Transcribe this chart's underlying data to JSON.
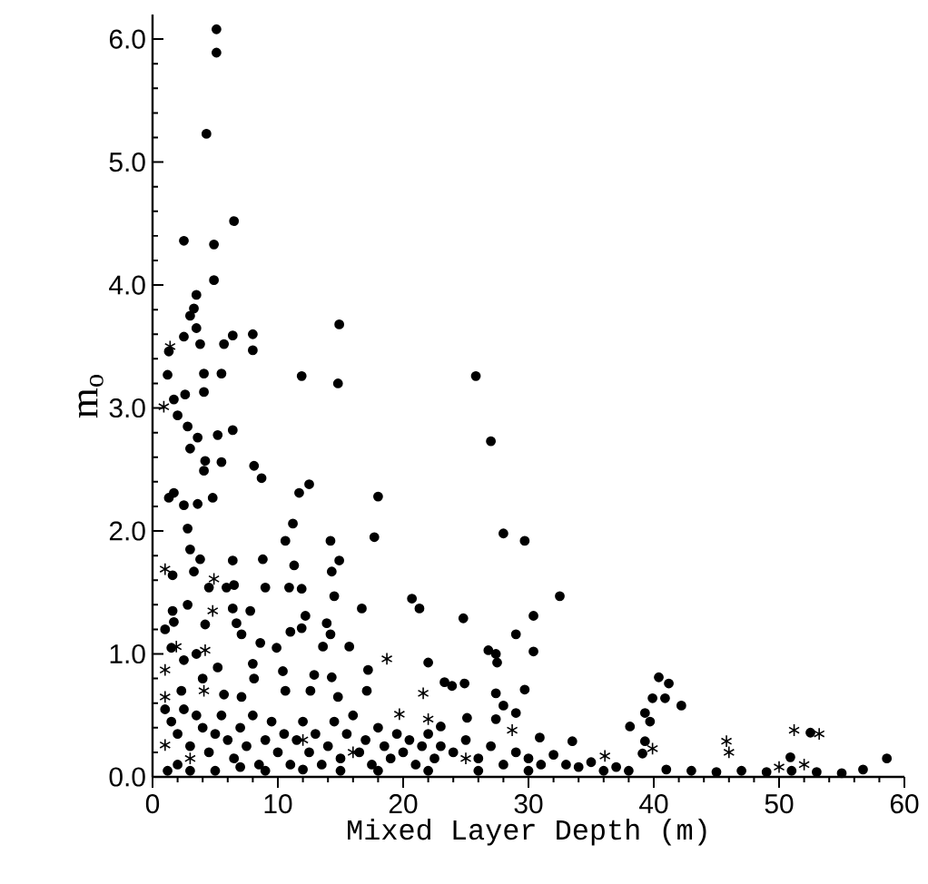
{
  "chart_data": {
    "type": "scatter",
    "xlabel": "Mixed Layer Depth (m)",
    "ylabel": "m$_{o}$",
    "xlim": [
      0,
      60
    ],
    "ylim": [
      0,
      6.2
    ],
    "xticks": [
      0,
      10,
      20,
      30,
      40,
      50,
      60
    ],
    "yticks": [
      {
        "value": 0,
        "label": "0.0"
      },
      {
        "value": 1,
        "label": "1.0"
      },
      {
        "value": 2,
        "label": "2.0"
      },
      {
        "value": 3,
        "label": "3.0"
      },
      {
        "value": 4,
        "label": "4.0"
      },
      {
        "value": 5,
        "label": "5.0"
      },
      {
        "value": 6,
        "label": "6.0"
      }
    ],
    "series": [
      {
        "color": "#000000",
        "marker": "circle",
        "x": [
          5.1,
          5.1,
          4.3,
          6.5,
          2.5,
          4.9,
          4.9,
          3.5,
          3.3,
          3.0,
          3.5,
          2.5,
          3.8,
          5.7,
          6.4,
          8.0,
          8.0,
          14.9,
          1.2,
          4.1,
          5.5,
          11.9,
          14.8,
          2.6,
          4.1,
          1.7,
          1.3,
          2.0,
          2.8,
          3.6,
          5.2,
          6.4,
          3.0,
          4.2,
          5.5,
          4.1,
          8.1,
          8.7,
          12.5,
          11.7,
          18.0,
          1.3,
          1.7,
          2.5,
          3.6,
          4.8,
          11.2,
          10.6,
          14.2,
          17.7,
          2.8,
          3.0,
          3.8,
          6.4,
          8.8,
          14.9,
          11.3,
          14.3,
          1.6,
          3.3,
          4.5,
          5.9,
          6.5,
          9.0,
          10.9,
          11.9,
          14.5,
          16.7,
          2.8,
          1.6,
          6.4,
          7.8,
          12.2,
          1.7,
          4.2,
          6.7,
          13.9,
          7.1,
          11.9,
          11.0,
          14.2,
          8.6,
          9.9,
          13.6,
          15.7,
          5.2,
          8.0,
          10.4,
          8.1,
          12.9,
          14.3,
          17.2,
          2.3,
          5.7,
          7.1,
          10.6,
          12.6,
          14.8,
          17.1,
          25.8,
          27.0,
          28.0,
          29.7,
          32.5,
          20.7,
          21.3,
          24.8,
          30.4,
          29.0,
          26.8,
          27.4,
          30.4,
          27.5,
          22.0,
          23.3,
          23.9,
          24.9,
          27.4,
          29.7,
          28.0,
          29.0,
          40.4,
          41.2,
          39.9,
          40.9,
          42.2,
          39.3,
          39.7,
          38.1,
          39.3,
          39.1,
          52.5,
          58.6,
          50.9,
          25.1,
          23.0,
          27.4,
          30.9,
          33.5,
          56.7,
          1.0,
          1.5,
          2.0,
          2.5,
          3,
          3.5,
          4,
          4.5,
          5,
          5.5,
          6,
          6.5,
          7,
          7.5,
          8,
          8.5,
          9,
          9.5,
          10,
          10.5,
          11,
          11.5,
          12,
          12.5,
          13,
          13.5,
          14,
          14.5,
          15,
          15.5,
          16,
          16.5,
          17,
          17.5,
          18,
          18.5,
          19,
          19.5,
          20,
          20.5,
          21,
          21.5,
          22,
          22.5,
          23,
          24,
          25,
          26,
          27,
          28,
          29,
          30,
          31,
          32,
          33,
          34,
          35,
          36,
          37,
          38,
          41,
          43,
          45,
          47,
          49,
          51,
          53,
          55,
          1.2,
          2,
          3,
          5,
          7,
          9,
          12,
          15,
          18,
          22,
          26,
          30,
          1.5,
          2.5,
          1,
          4,
          3.5
        ],
        "values": [
          6.08,
          5.89,
          5.23,
          4.52,
          4.36,
          4.33,
          4.04,
          3.92,
          3.81,
          3.75,
          3.65,
          3.58,
          3.52,
          3.52,
          3.59,
          3.6,
          3.47,
          3.68,
          3.27,
          3.28,
          3.28,
          3.26,
          3.2,
          3.11,
          3.13,
          3.07,
          3.46,
          2.94,
          2.85,
          2.76,
          2.78,
          2.82,
          2.67,
          2.57,
          2.56,
          2.49,
          2.53,
          2.43,
          2.38,
          2.31,
          2.28,
          2.27,
          2.31,
          2.21,
          2.22,
          2.27,
          2.06,
          1.92,
          1.92,
          1.95,
          2.02,
          1.85,
          1.77,
          1.76,
          1.77,
          1.76,
          1.72,
          1.67,
          1.64,
          1.67,
          1.54,
          1.54,
          1.56,
          1.54,
          1.54,
          1.53,
          1.47,
          1.37,
          1.4,
          1.35,
          1.37,
          1.35,
          1.31,
          1.26,
          1.24,
          1.25,
          1.25,
          1.16,
          1.21,
          1.18,
          1.16,
          1.09,
          1.05,
          1.06,
          1.06,
          0.89,
          0.92,
          0.86,
          0.8,
          0.83,
          0.81,
          0.87,
          0.7,
          0.67,
          0.65,
          0.7,
          0.7,
          0.65,
          0.7,
          3.26,
          2.73,
          1.98,
          1.92,
          1.47,
          1.45,
          1.37,
          1.29,
          1.31,
          1.16,
          1.03,
          1.0,
          1.02,
          0.93,
          0.93,
          0.77,
          0.74,
          0.76,
          0.68,
          0.71,
          0.58,
          0.52,
          0.81,
          0.76,
          0.64,
          0.64,
          0.58,
          0.52,
          0.45,
          0.41,
          0.29,
          0.19,
          0.36,
          0.15,
          0.16,
          0.48,
          0.41,
          0.47,
          0.32,
          0.29,
          0.06,
          0.55,
          0.45,
          0.35,
          0.55,
          0.25,
          0.5,
          0.4,
          0.2,
          0.35,
          0.5,
          0.3,
          0.15,
          0.4,
          0.25,
          0.5,
          0.1,
          0.3,
          0.45,
          0.2,
          0.35,
          0.1,
          0.3,
          0.45,
          0.2,
          0.35,
          0.1,
          0.25,
          0.45,
          0.15,
          0.35,
          0.5,
          0.2,
          0.3,
          0.1,
          0.4,
          0.25,
          0.15,
          0.35,
          0.2,
          0.3,
          0.1,
          0.25,
          0.35,
          0.15,
          0.25,
          0.2,
          0.3,
          0.15,
          0.25,
          0.1,
          0.2,
          0.15,
          0.1,
          0.18,
          0.1,
          0.08,
          0.12,
          0.05,
          0.08,
          0.05,
          0.06,
          0.05,
          0.04,
          0.05,
          0.04,
          0.05,
          0.04,
          0.03,
          0.05,
          0.1,
          0.05,
          0.05,
          0.08,
          0.05,
          0.06,
          0.05,
          0.05,
          0.05,
          0.05,
          0.05,
          1.05,
          0.95,
          1.2,
          0.8,
          1.0
        ]
      },
      {
        "color": "#000000",
        "marker": "cross",
        "x": [
          1.4,
          0.9,
          1.0,
          4.9,
          4.8,
          1.9,
          4.2,
          1.0,
          18.7,
          1.0,
          4.1,
          21.6,
          19.7,
          22.0,
          28.7,
          36.1,
          45.8,
          51.2,
          53.2,
          39.9,
          1.0,
          12,
          16,
          25,
          46,
          50,
          52,
          3
        ],
        "values": [
          3.5,
          3.01,
          1.69,
          1.61,
          1.35,
          1.06,
          1.03,
          0.87,
          0.96,
          0.65,
          0.7,
          0.68,
          0.51,
          0.47,
          0.38,
          0.17,
          0.29,
          0.38,
          0.35,
          0.23,
          0.26,
          0.3,
          0.2,
          0.15,
          0.2,
          0.08,
          0.1,
          0.15
        ]
      }
    ]
  }
}
